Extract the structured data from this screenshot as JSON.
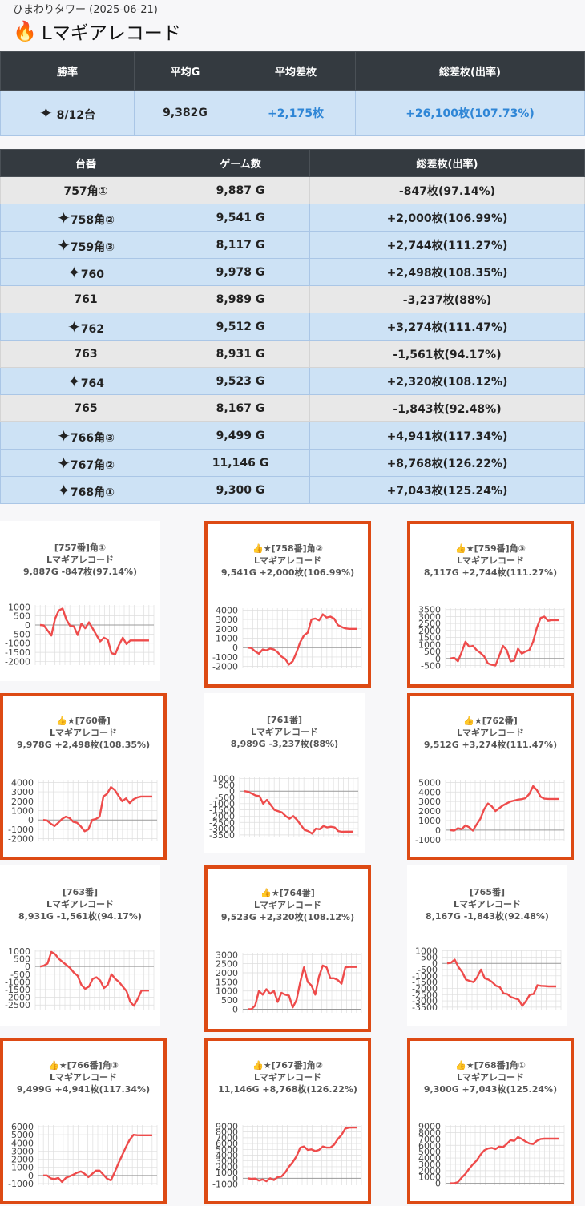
{
  "header": {
    "subtitle": "ひまわりタワー (2025-06-21)",
    "title": "Lマギアレコード",
    "icon": "fire-icon"
  },
  "summary": {
    "headers": [
      "勝率",
      "平均G",
      "平均差枚",
      "総差枚(出率)"
    ],
    "win_rate": "8/12台",
    "avg_games": "9,382G",
    "avg_diff": "+2,175枚",
    "total_diff": "+26,100枚(107.73%)"
  },
  "table": {
    "headers": [
      "台番",
      "ゲーム数",
      "総差枚(出率)"
    ],
    "rows": [
      {
        "machine": "757角①",
        "games": "9,887 G",
        "diff": "-847枚(97.14%)",
        "win": false
      },
      {
        "machine": "758角②",
        "games": "9,541 G",
        "diff": "+2,000枚(106.99%)",
        "win": true
      },
      {
        "machine": "759角③",
        "games": "8,117 G",
        "diff": "+2,744枚(111.27%)",
        "win": true
      },
      {
        "machine": "760",
        "games": "9,978 G",
        "diff": "+2,498枚(108.35%)",
        "win": true
      },
      {
        "machine": "761",
        "games": "8,989 G",
        "diff": "-3,237枚(88%)",
        "win": false
      },
      {
        "machine": "762",
        "games": "9,512 G",
        "diff": "+3,274枚(111.47%)",
        "win": true
      },
      {
        "machine": "763",
        "games": "8,931 G",
        "diff": "-1,561枚(94.17%)",
        "win": false
      },
      {
        "machine": "764",
        "games": "9,523 G",
        "diff": "+2,320枚(108.12%)",
        "win": true
      },
      {
        "machine": "765",
        "games": "8,167 G",
        "diff": "-1,843枚(92.48%)",
        "win": false
      },
      {
        "machine": "766角③",
        "games": "9,499 G",
        "diff": "+4,941枚(117.34%)",
        "win": true
      },
      {
        "machine": "767角②",
        "games": "11,146 G",
        "diff": "+8,768枚(126.22%)",
        "win": true
      },
      {
        "machine": "768角①",
        "games": "9,300 G",
        "diff": "+7,043枚(125.24%)",
        "win": true
      }
    ]
  },
  "chart_data": [
    {
      "type": "line",
      "title": "[757番]角①",
      "subtitle": "Lマギアレコード",
      "stats": "9,887G -847枚(97.14%)",
      "win": false,
      "yticks": [
        1000,
        500,
        0,
        -500,
        -1000,
        -1500,
        -2000
      ],
      "ylim": [
        -2200,
        1100
      ],
      "values": [
        0,
        -20,
        -300,
        -580,
        350,
        800,
        900,
        300,
        -50,
        -80,
        -550,
        80,
        -180,
        150,
        -200,
        -550,
        -900,
        -700,
        -800,
        -1550,
        -1600,
        -1100,
        -700,
        -1050,
        -850,
        -850,
        -850,
        -850,
        -850,
        -847
      ]
    },
    {
      "type": "line",
      "title": "👍★[758番]角②",
      "subtitle": "Lマギアレコード",
      "stats": "9,541G +2,000枚(106.99%)",
      "win": true,
      "yticks": [
        4000,
        3000,
        2000,
        1000,
        0,
        -1000,
        -2000
      ],
      "ylim": [
        -2200,
        4200
      ],
      "values": [
        0,
        -50,
        -400,
        -650,
        -200,
        -300,
        -100,
        -200,
        -500,
        -950,
        -1200,
        -1800,
        -1450,
        -500,
        600,
        1300,
        1600,
        3000,
        3100,
        2900,
        3550,
        3200,
        3300,
        3100,
        2400,
        2200,
        2050,
        2000,
        2000,
        2000
      ]
    },
    {
      "type": "line",
      "title": "👍★[759番]角③",
      "subtitle": "Lマギアレコード",
      "stats": "8,117G +2,744枚(111.27%)",
      "win": true,
      "yticks": [
        3500,
        3000,
        2500,
        2000,
        1500,
        1000,
        500,
        0,
        -500
      ],
      "ylim": [
        -700,
        3600
      ],
      "values": [
        0,
        50,
        -200,
        450,
        1200,
        850,
        900,
        600,
        400,
        150,
        -350,
        -450,
        -500,
        200,
        900,
        600,
        -200,
        -150,
        700,
        350,
        500,
        600,
        1200,
        2200,
        2900,
        3000,
        2700,
        2750,
        2744,
        2744
      ]
    },
    {
      "type": "line",
      "title": "👍★[760番]",
      "subtitle": "Lマギアレコード",
      "stats": "9,978G +2,498枚(108.35%)",
      "win": true,
      "yticks": [
        4000,
        3000,
        2000,
        1000,
        0,
        -1000,
        -2000
      ],
      "ylim": [
        -2200,
        4200
      ],
      "values": [
        0,
        -50,
        -400,
        -650,
        -300,
        100,
        350,
        200,
        -200,
        -300,
        -700,
        -1200,
        -1000,
        0,
        100,
        350,
        2500,
        2800,
        3500,
        3200,
        2600,
        2000,
        2300,
        1800,
        2200,
        2400,
        2500,
        2500,
        2500,
        2498
      ]
    },
    {
      "type": "line",
      "title": "[761番]",
      "subtitle": "Lマギアレコード",
      "stats": "8,989G -3,237枚(88%)",
      "win": false,
      "yticks": [
        1000,
        500,
        0,
        -500,
        -1000,
        -1500,
        -2000,
        -2500,
        -3000,
        -3500
      ],
      "ylim": [
        -3700,
        1100
      ],
      "values": [
        0,
        -50,
        -200,
        -350,
        -400,
        -1000,
        -700,
        -1100,
        -1500,
        -1600,
        -1700,
        -2000,
        -2200,
        -2000,
        -2300,
        -2700,
        -3100,
        -3200,
        -3400,
        -3000,
        -3050,
        -2800,
        -2900,
        -2850,
        -2900,
        -3200,
        -3250,
        -3237,
        -3237,
        -3237
      ]
    },
    {
      "type": "line",
      "title": "👍★[762番]",
      "subtitle": "Lマギアレコード",
      "stats": "9,512G +3,274枚(111.47%)",
      "win": true,
      "yticks": [
        5000,
        4000,
        3000,
        2000,
        1000,
        0,
        -1000
      ],
      "ylim": [
        -1100,
        5200
      ],
      "values": [
        0,
        -50,
        200,
        100,
        500,
        300,
        -50,
        600,
        1200,
        2200,
        2800,
        2500,
        2000,
        2300,
        2600,
        2800,
        3000,
        3100,
        3200,
        3250,
        3350,
        3800,
        4600,
        4200,
        3500,
        3300,
        3274,
        3274,
        3274,
        3274
      ]
    },
    {
      "type": "line",
      "title": "[763番]",
      "subtitle": "Lマギアレコード",
      "stats": "8,931G -1,561枚(94.17%)",
      "win": false,
      "yticks": [
        1000,
        500,
        0,
        -500,
        -1000,
        -1500,
        -2000,
        -2500
      ],
      "ylim": [
        -2800,
        1100
      ],
      "values": [
        0,
        50,
        200,
        950,
        800,
        500,
        300,
        100,
        -100,
        -400,
        -600,
        -1200,
        -1450,
        -1300,
        -800,
        -700,
        -900,
        -1400,
        -1200,
        -500,
        -800,
        -1000,
        -1300,
        -1600,
        -2300,
        -2550,
        -2100,
        -1561,
        -1561,
        -1561
      ]
    },
    {
      "type": "line",
      "title": "👍★[764番]",
      "subtitle": "Lマギアレコード",
      "stats": "9,523G +2,320枚(108.12%)",
      "win": true,
      "yticks": [
        3000,
        2500,
        2000,
        1500,
        1000,
        500,
        0
      ],
      "ylim": [
        -200,
        3100
      ],
      "values": [
        0,
        0,
        200,
        1000,
        800,
        1100,
        850,
        1000,
        400,
        900,
        800,
        750,
        100,
        500,
        1500,
        2300,
        1500,
        1300,
        800,
        1800,
        2400,
        2300,
        1700,
        1700,
        1600,
        1400,
        2300,
        2320,
        2320,
        2320
      ]
    },
    {
      "type": "line",
      "title": "[765番]",
      "subtitle": "Lマギアレコード",
      "stats": "8,167G -1,843枚(92.48%)",
      "win": false,
      "yticks": [
        1000,
        500,
        0,
        -500,
        -1000,
        -1500,
        -2000,
        -2500,
        -3000,
        -3500
      ],
      "ylim": [
        -3700,
        1100
      ],
      "values": [
        0,
        50,
        300,
        -300,
        -700,
        -1300,
        -1400,
        -1500,
        -1100,
        -500,
        -1200,
        -1300,
        -1500,
        -1800,
        -1900,
        -2400,
        -2450,
        -2700,
        -2800,
        -2900,
        -3400,
        -3000,
        -2500,
        -2450,
        -1750,
        -1800,
        -1820,
        -1843,
        -1843,
        -1843
      ]
    },
    {
      "type": "line",
      "title": "👍★[766番]角③",
      "subtitle": "Lマギアレコード",
      "stats": "9,499G +4,941枚(117.34%)",
      "win": true,
      "yticks": [
        6000,
        5000,
        4000,
        3000,
        2000,
        1000,
        0,
        -1000
      ],
      "ylim": [
        -1200,
        6200
      ],
      "values": [
        0,
        0,
        -350,
        -450,
        -300,
        -800,
        -300,
        -100,
        100,
        350,
        500,
        200,
        -200,
        200,
        600,
        600,
        100,
        -400,
        -600,
        400,
        1500,
        2500,
        3500,
        4400,
        5000,
        4950,
        4941,
        4941,
        4941,
        4941
      ]
    },
    {
      "type": "line",
      "title": "👍★[767番]角②",
      "subtitle": "Lマギアレコード",
      "stats": "11,146G +8,768枚(126.22%)",
      "win": true,
      "yticks": [
        9000,
        8000,
        7000,
        6000,
        5000,
        4000,
        3000,
        2000,
        1000,
        0,
        -1000
      ],
      "ylim": [
        -1200,
        9200
      ],
      "values": [
        0,
        -100,
        -50,
        -400,
        -200,
        -500,
        0,
        -300,
        200,
        300,
        1000,
        2000,
        2800,
        3800,
        5300,
        5500,
        4900,
        5000,
        4700,
        4900,
        5500,
        5300,
        5300,
        5800,
        6800,
        7500,
        8600,
        8750,
        8768,
        8768
      ]
    },
    {
      "type": "line",
      "title": "👍★[768番]角①",
      "subtitle": "Lマギアレコード",
      "stats": "9,300G +7,043枚(125.24%)",
      "win": true,
      "yticks": [
        9000,
        8000,
        7000,
        6000,
        5000,
        4000,
        3000,
        2000,
        1000,
        0
      ],
      "ylim": [
        -300,
        9200
      ],
      "values": [
        0,
        0,
        200,
        900,
        1500,
        2300,
        3000,
        3600,
        4500,
        5200,
        5500,
        5600,
        5400,
        5800,
        5700,
        6200,
        6800,
        6700,
        7300,
        7000,
        6600,
        6300,
        6200,
        6700,
        7000,
        7043,
        7043,
        7043,
        7043,
        7043
      ]
    }
  ]
}
